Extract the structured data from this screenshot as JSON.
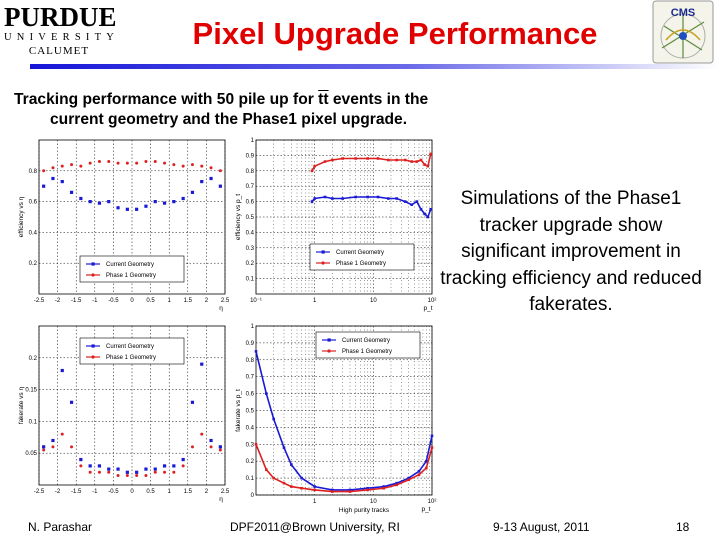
{
  "header": {
    "title": "Pixel Upgrade Performance",
    "logo_left": {
      "line1": "PURDUE",
      "line2": "UNIVERSITY",
      "line3": "CALUMET"
    },
    "logo_right": {
      "text": "CMS"
    }
  },
  "subtitle": {
    "line1_a": "Tracking performance with 50 pile up for ",
    "line1_tt": "tt",
    "line1_b": " events in the",
    "line2": "current geometry and the Phase1 pixel upgrade."
  },
  "simulation_text": "Simulations of the Phase1 tracker upgrade show significant improvement in tracking efficiency and reduced fakerates.",
  "footer": {
    "author": "N. Parashar",
    "conference": "DPF2011@Brown University, RI",
    "date": "9-13 August, 2011",
    "page": "18"
  },
  "colors": {
    "title": "#e00000",
    "current": "#1a1ad6",
    "phase1": "#dd2020",
    "rule": "#1515d8"
  },
  "chart_data": [
    {
      "id": "eff-eta",
      "type": "scatter",
      "ylabel": "efficiency vs η",
      "xlabel": "η",
      "xlim": [
        -2.5,
        2.5
      ],
      "ylim": [
        0,
        1
      ],
      "xticks": [
        "-2.5",
        "-2",
        "-1.5",
        "-1",
        "-0.5",
        "0",
        "0.5",
        "1",
        "1.5",
        "2",
        "2.5"
      ],
      "yticks": [
        "0.2",
        "0.4",
        "0.6",
        "0.8"
      ],
      "legend": [
        "Current Geometry",
        "Phase 1 Geometry"
      ],
      "legend_position": "bottom-center",
      "series": [
        {
          "name": "Current Geometry",
          "x": [
            -2.375,
            -2.125,
            -1.875,
            -1.625,
            -1.375,
            -1.125,
            -0.875,
            -0.625,
            -0.375,
            -0.125,
            0.125,
            0.375,
            0.625,
            0.875,
            1.125,
            1.375,
            1.625,
            1.875,
            2.125,
            2.375
          ],
          "y": [
            0.7,
            0.75,
            0.73,
            0.66,
            0.62,
            0.6,
            0.59,
            0.6,
            0.56,
            0.55,
            0.55,
            0.57,
            0.6,
            0.59,
            0.6,
            0.62,
            0.66,
            0.73,
            0.75,
            0.7
          ]
        },
        {
          "name": "Phase 1 Geometry",
          "x": [
            -2.375,
            -2.125,
            -1.875,
            -1.625,
            -1.375,
            -1.125,
            -0.875,
            -0.625,
            -0.375,
            -0.125,
            0.125,
            0.375,
            0.625,
            0.875,
            1.125,
            1.375,
            1.625,
            1.875,
            2.125,
            2.375
          ],
          "y": [
            0.8,
            0.82,
            0.83,
            0.84,
            0.83,
            0.85,
            0.86,
            0.86,
            0.85,
            0.85,
            0.85,
            0.86,
            0.86,
            0.85,
            0.84,
            0.83,
            0.84,
            0.83,
            0.82,
            0.8
          ]
        }
      ]
    },
    {
      "id": "eff-pt",
      "type": "line",
      "log_x": true,
      "ylabel": "efficiency vs p_t",
      "xlabel": "p_t",
      "xlim": [
        0.1,
        100
      ],
      "ylim": [
        0,
        1
      ],
      "xticks": [
        "10⁻¹",
        "1",
        "10",
        "10²"
      ],
      "yticks": [
        "0.1",
        "0.2",
        "0.3",
        "0.4",
        "0.5",
        "0.6",
        "0.7",
        "0.8",
        "0.9",
        "1"
      ],
      "legend": [
        "Current Geometry",
        "Phase 1 Geometry"
      ],
      "legend_position": "bottom-right",
      "series": [
        {
          "name": "Current Geometry",
          "x": [
            0.9,
            1,
            1.5,
            2,
            3,
            5,
            8,
            12,
            18,
            25,
            35,
            45,
            55,
            65,
            75,
            85,
            95
          ],
          "y": [
            0.6,
            0.62,
            0.63,
            0.62,
            0.62,
            0.63,
            0.63,
            0.63,
            0.62,
            0.62,
            0.6,
            0.58,
            0.6,
            0.55,
            0.52,
            0.5,
            0.55
          ]
        },
        {
          "name": "Phase 1 Geometry",
          "x": [
            0.9,
            1,
            1.5,
            2,
            3,
            5,
            8,
            12,
            18,
            25,
            35,
            45,
            55,
            65,
            75,
            85,
            95
          ],
          "y": [
            0.8,
            0.83,
            0.86,
            0.87,
            0.88,
            0.88,
            0.88,
            0.88,
            0.87,
            0.87,
            0.87,
            0.86,
            0.86,
            0.87,
            0.84,
            0.83,
            0.91
          ]
        }
      ]
    },
    {
      "id": "fake-eta",
      "type": "scatter",
      "ylabel": "fakerate vs η",
      "xlabel": "η",
      "xlim": [
        -2.5,
        2.5
      ],
      "ylim": [
        0,
        0.25
      ],
      "xticks": [
        "-2.5",
        "-2",
        "-1.5",
        "-1",
        "-0.5",
        "0",
        "0.5",
        "1",
        "1.5",
        "2",
        "2.5"
      ],
      "yticks": [
        "0.05",
        "0.1",
        "0.15",
        "0.2"
      ],
      "legend": [
        "Current Geometry",
        "Phase 1 Geometry"
      ],
      "legend_position": "top-center",
      "series": [
        {
          "name": "Current Geometry",
          "x": [
            -2.375,
            -2.125,
            -1.875,
            -1.625,
            -1.375,
            -1.125,
            -0.875,
            -0.625,
            -0.375,
            -0.125,
            0.125,
            0.375,
            0.625,
            0.875,
            1.125,
            1.375,
            1.625,
            1.875,
            2.125,
            2.375
          ],
          "y": [
            0.06,
            0.07,
            0.18,
            0.13,
            0.04,
            0.03,
            0.03,
            0.025,
            0.025,
            0.02,
            0.02,
            0.025,
            0.025,
            0.03,
            0.03,
            0.04,
            0.13,
            0.19,
            0.07,
            0.06
          ]
        },
        {
          "name": "Phase 1 Geometry",
          "x": [
            -2.375,
            -2.125,
            -1.875,
            -1.625,
            -1.375,
            -1.125,
            -0.875,
            -0.625,
            -0.375,
            -0.125,
            0.125,
            0.375,
            0.625,
            0.875,
            1.125,
            1.375,
            1.625,
            1.875,
            2.125,
            2.375
          ],
          "y": [
            0.055,
            0.06,
            0.08,
            0.06,
            0.03,
            0.02,
            0.02,
            0.02,
            0.015,
            0.015,
            0.015,
            0.015,
            0.02,
            0.02,
            0.02,
            0.03,
            0.06,
            0.08,
            0.06,
            0.055
          ]
        }
      ]
    },
    {
      "id": "fake-pt",
      "type": "line",
      "log_x": true,
      "ylabel": "fakerate vs p_t",
      "xlabel": "High purity tracks",
      "xunit": "p_t",
      "xlim": [
        0.1,
        100
      ],
      "ylim": [
        0,
        1
      ],
      "xticks": [
        "1",
        "10",
        "10²"
      ],
      "yticks": [
        "0",
        "0.1",
        "0.2",
        "0.3",
        "0.4",
        "0.5",
        "0.6",
        "0.7",
        "0.8",
        "0.9",
        "1"
      ],
      "legend": [
        "Current Geometry",
        "Phase 1 Geometry"
      ],
      "legend_position": "top-right",
      "series": [
        {
          "name": "Current Geometry",
          "x": [
            0.1,
            0.15,
            0.2,
            0.3,
            0.4,
            0.6,
            1,
            2,
            4,
            8,
            15,
            25,
            40,
            60,
            80,
            100
          ],
          "y": [
            0.85,
            0.6,
            0.45,
            0.28,
            0.18,
            0.1,
            0.05,
            0.03,
            0.03,
            0.04,
            0.05,
            0.07,
            0.1,
            0.14,
            0.2,
            0.35
          ]
        },
        {
          "name": "Phase 1 Geometry",
          "x": [
            0.1,
            0.15,
            0.2,
            0.3,
            0.4,
            0.6,
            1,
            2,
            4,
            8,
            15,
            25,
            40,
            60,
            80,
            100
          ],
          "y": [
            0.3,
            0.15,
            0.1,
            0.07,
            0.05,
            0.04,
            0.03,
            0.02,
            0.02,
            0.03,
            0.04,
            0.06,
            0.09,
            0.12,
            0.16,
            0.28
          ]
        }
      ]
    }
  ]
}
